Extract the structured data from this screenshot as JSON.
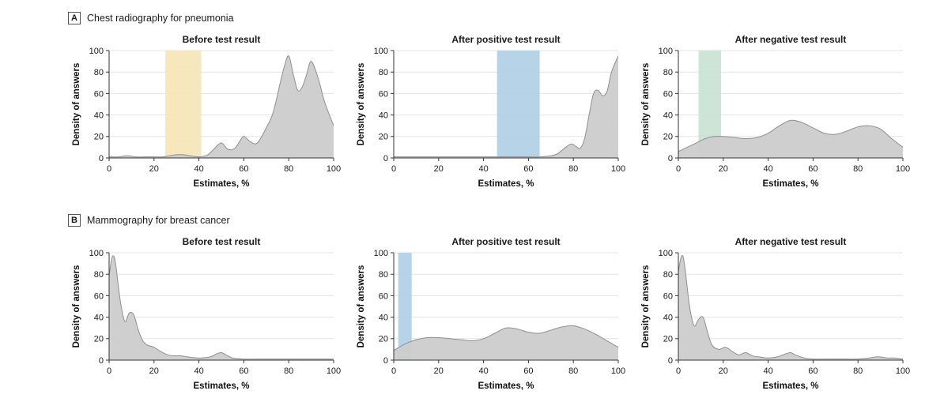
{
  "figure": {
    "sections": [
      {
        "label": "A",
        "title": "Chest radiography for pneumonia"
      },
      {
        "label": "B",
        "title": "Mammography for breast cancer"
      }
    ]
  },
  "colors": {
    "density_fill": "#cccccc",
    "density_stroke": "#8f8f8f",
    "axis": "#333333",
    "gridline": "#e4e4e4",
    "band_yellow": "#F6E4B5",
    "band_blue": "#AFCEE4",
    "band_green": "#C7E2D1"
  },
  "chart_data": [
    {
      "type": "area",
      "section": "A",
      "title": "Before test result",
      "xlabel": "Estimates, %",
      "ylabel": "Density of answers",
      "xlim": [
        0,
        100
      ],
      "ylim": [
        0,
        100
      ],
      "xticks": [
        0,
        20,
        40,
        60,
        80,
        100
      ],
      "yticks": [
        0,
        20,
        40,
        60,
        80,
        100
      ],
      "band": {
        "from": 25,
        "to": 41,
        "color": "#F6E4B5"
      },
      "fill": "#cccccc",
      "stroke": "#8f8f8f",
      "x": [
        0,
        4,
        8,
        12,
        16,
        20,
        24,
        27,
        30,
        33,
        36,
        40,
        44,
        47,
        50,
        53,
        56,
        58,
        60,
        63,
        66,
        70,
        73,
        76,
        78,
        80,
        82,
        84,
        86,
        88,
        90,
        93,
        96,
        100
      ],
      "y": [
        1,
        1,
        2,
        1,
        1,
        1,
        1,
        2,
        3,
        3,
        2,
        1,
        3,
        9,
        14,
        8,
        9,
        15,
        20,
        15,
        14,
        28,
        42,
        68,
        85,
        95,
        78,
        63,
        66,
        78,
        90,
        75,
        52,
        30
      ]
    },
    {
      "type": "area",
      "section": "A",
      "title": "After positive test result",
      "xlabel": "Estimates, %",
      "ylabel": "Density of answers",
      "xlim": [
        0,
        100
      ],
      "ylim": [
        0,
        100
      ],
      "xticks": [
        0,
        20,
        40,
        60,
        80,
        100
      ],
      "yticks": [
        0,
        20,
        40,
        60,
        80,
        100
      ],
      "band": {
        "from": 46,
        "to": 65,
        "color": "#AFCEE4"
      },
      "fill": "#cccccc",
      "stroke": "#8f8f8f",
      "x": [
        0,
        10,
        20,
        30,
        40,
        50,
        55,
        60,
        65,
        70,
        73,
        76,
        79,
        81,
        83,
        85,
        87,
        89,
        91,
        93,
        95,
        97,
        100
      ],
      "y": [
        1,
        1,
        1,
        1,
        1,
        1,
        1,
        1,
        1,
        2,
        4,
        9,
        13,
        11,
        9,
        18,
        40,
        60,
        63,
        58,
        62,
        80,
        95
      ]
    },
    {
      "type": "area",
      "section": "A",
      "title": "After negative test result",
      "xlabel": "Estimates, %",
      "ylabel": "Density of answers",
      "xlim": [
        0,
        100
      ],
      "ylim": [
        0,
        100
      ],
      "xticks": [
        0,
        20,
        40,
        60,
        80,
        100
      ],
      "yticks": [
        0,
        20,
        40,
        60,
        80,
        100
      ],
      "band": {
        "from": 9,
        "to": 19,
        "color": "#C7E2D1"
      },
      "fill": "#cccccc",
      "stroke": "#8f8f8f",
      "x": [
        0,
        4,
        8,
        12,
        16,
        20,
        25,
        30,
        35,
        40,
        45,
        50,
        55,
        60,
        65,
        70,
        75,
        80,
        85,
        90,
        95,
        100
      ],
      "y": [
        6,
        10,
        14,
        18,
        20,
        20,
        19,
        18,
        19,
        23,
        30,
        35,
        33,
        28,
        23,
        22,
        25,
        29,
        30,
        27,
        18,
        10
      ]
    },
    {
      "type": "area",
      "section": "B",
      "title": "Before test result",
      "xlabel": "Estimates, %",
      "ylabel": "Density of answers",
      "xlim": [
        0,
        100
      ],
      "ylim": [
        0,
        100
      ],
      "xticks": [
        0,
        20,
        40,
        60,
        80,
        100
      ],
      "yticks": [
        0,
        20,
        40,
        60,
        80,
        100
      ],
      "band": null,
      "fill": "#cccccc",
      "stroke": "#8f8f8f",
      "x": [
        0,
        1,
        2,
        3,
        5,
        7,
        9,
        11,
        13,
        15,
        17,
        20,
        23,
        26,
        29,
        32,
        35,
        40,
        45,
        48,
        50,
        52,
        55,
        60,
        65,
        70,
        80,
        90,
        100
      ],
      "y": [
        78,
        93,
        97,
        88,
        55,
        36,
        44,
        42,
        28,
        18,
        14,
        12,
        8,
        5,
        4,
        4,
        3,
        2,
        3,
        6,
        7,
        5,
        2,
        1,
        1,
        1,
        1,
        1,
        1
      ]
    },
    {
      "type": "area",
      "section": "B",
      "title": "After positive test result",
      "xlabel": "Estimates, %",
      "ylabel": "Density of answers",
      "xlim": [
        0,
        100
      ],
      "ylim": [
        0,
        100
      ],
      "xticks": [
        0,
        20,
        40,
        60,
        80,
        100
      ],
      "yticks": [
        0,
        20,
        40,
        60,
        80,
        100
      ],
      "band": {
        "from": 2,
        "to": 8,
        "color": "#AFCEE4"
      },
      "fill": "#cccccc",
      "stroke": "#8f8f8f",
      "x": [
        0,
        5,
        10,
        15,
        20,
        25,
        30,
        35,
        40,
        45,
        50,
        55,
        60,
        65,
        70,
        75,
        80,
        85,
        90,
        95,
        100
      ],
      "y": [
        9,
        15,
        19,
        21,
        21,
        20,
        19,
        18,
        20,
        25,
        30,
        29,
        26,
        25,
        28,
        31,
        32,
        29,
        24,
        18,
        12
      ]
    },
    {
      "type": "area",
      "section": "B",
      "title": "After negative test result",
      "xlabel": "Estimates, %",
      "ylabel": "Density of answers",
      "xlim": [
        0,
        100
      ],
      "ylim": [
        0,
        100
      ],
      "xticks": [
        0,
        20,
        40,
        60,
        80,
        100
      ],
      "yticks": [
        0,
        20,
        40,
        60,
        80,
        100
      ],
      "band": null,
      "fill": "#cccccc",
      "stroke": "#8f8f8f",
      "x": [
        0,
        1,
        2,
        3,
        5,
        7,
        9,
        11,
        13,
        15,
        18,
        21,
        24,
        27,
        30,
        33,
        36,
        40,
        44,
        48,
        50,
        52,
        56,
        60,
        65,
        70,
        75,
        80,
        85,
        88,
        90,
        93,
        96,
        100
      ],
      "y": [
        82,
        94,
        97,
        85,
        50,
        32,
        38,
        40,
        26,
        14,
        10,
        12,
        8,
        5,
        7,
        4,
        3,
        2,
        3,
        6,
        7,
        5,
        2,
        1,
        1,
        1,
        1,
        1,
        2,
        3,
        3,
        2,
        2,
        1
      ]
    }
  ]
}
